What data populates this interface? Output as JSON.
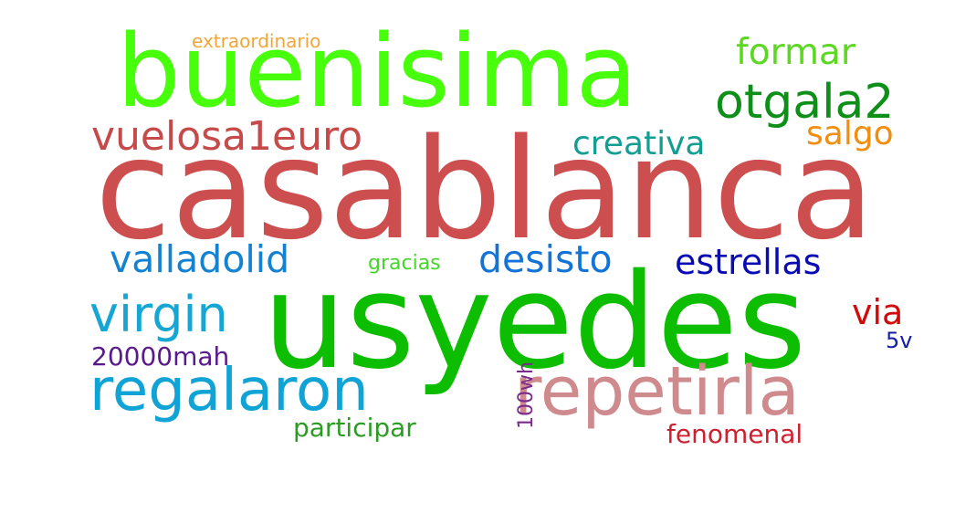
{
  "word_cloud": {
    "words": [
      {
        "key": "casablanca",
        "text": "casablanca",
        "color": "#cc4e4e",
        "rank": 1
      },
      {
        "key": "usyedes",
        "text": "usyedes",
        "color": "#0dbd00",
        "rank": 2
      },
      {
        "key": "buenisima",
        "text": "buenisima",
        "color": "#47ff0a",
        "rank": 3
      },
      {
        "key": "repetirla",
        "text": "repetirla",
        "color": "#cf8a8e",
        "rank": 4
      },
      {
        "key": "regalaron",
        "text": "regalaron",
        "color": "#10a3d6",
        "rank": 5
      },
      {
        "key": "otgala2",
        "text": "otgala2",
        "color": "#0d8f18",
        "rank": 6
      },
      {
        "key": "virgin",
        "text": "virgin",
        "color": "#16a6d4",
        "rank": 7
      },
      {
        "key": "vuelosa1euro",
        "text": "vuelosa1euro",
        "color": "#c64a4a",
        "rank": 8
      },
      {
        "key": "formar",
        "text": "formar",
        "color": "#5dd822",
        "rank": 9
      },
      {
        "key": "creativa",
        "text": "creativa",
        "color": "#129e92",
        "rank": 10
      },
      {
        "key": "salgo",
        "text": "salgo",
        "color": "#f28e0e",
        "rank": 11
      },
      {
        "key": "valladolid",
        "text": "valladolid",
        "color": "#1383d1",
        "rank": 12
      },
      {
        "key": "desisto",
        "text": "desisto",
        "color": "#1373d6",
        "rank": 13
      },
      {
        "key": "estrellas",
        "text": "estrellas",
        "color": "#0a0bb3",
        "rank": 14
      },
      {
        "key": "via",
        "text": "via",
        "color": "#d10a0a",
        "rank": 15
      },
      {
        "key": "5v",
        "text": "5v",
        "color": "#131da8",
        "rank": 16
      },
      {
        "key": "20000mah",
        "text": "20000mah",
        "color": "#5a1a8e",
        "rank": 17
      },
      {
        "key": "participar",
        "text": "participar",
        "color": "#2a9c22",
        "rank": 18
      },
      {
        "key": "fenomenal",
        "text": "fenomenal",
        "color": "#cf1f2e",
        "rank": 19
      },
      {
        "key": "gracias",
        "text": "gracias",
        "color": "#45d62a",
        "rank": 20
      },
      {
        "key": "extraordinario",
        "text": "extraordinario",
        "color": "#f2a63a",
        "rank": 21
      },
      {
        "key": "100wh",
        "text": "100wh",
        "color": "#7a2a8a",
        "rank": 22
      }
    ]
  }
}
